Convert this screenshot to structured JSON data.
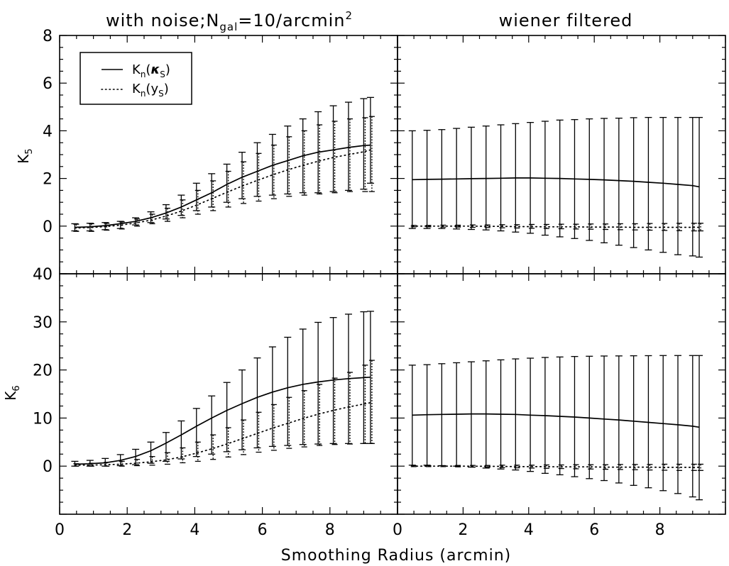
{
  "figure": {
    "left_title": "with noise;N",
    "left_title_sub": "gal",
    "left_title_mid": "=10/arcmin",
    "left_title_sup": "2",
    "right_title": "wiener filtered",
    "xlabel": "Smoothing Radius (arcmin)"
  },
  "legend": {
    "location": "top-left of upper-left panel",
    "entries": [
      {
        "main": "K",
        "sub1": "n",
        "open": "(",
        "sym": "κ",
        "sub2": "S",
        "close": ")",
        "style": "solid"
      },
      {
        "main": "K",
        "sub1": "n",
        "open": "(",
        "sym": "y",
        "sub2": "S",
        "close": ")",
        "style": "dotted"
      }
    ]
  },
  "chart_data": [
    {
      "type": "line",
      "panel": "top-left",
      "ylabel_main": "K",
      "ylabel_sub": "5",
      "xlim": [
        0,
        10
      ],
      "ylim": [
        -2,
        8
      ],
      "xticks": [
        "0",
        "2",
        "4",
        "6",
        "8"
      ],
      "yticks": [
        "0",
        "2",
        "4",
        "6",
        "8"
      ],
      "x": [
        0.45,
        0.9,
        1.35,
        1.8,
        2.25,
        2.7,
        3.15,
        3.6,
        4.05,
        4.5,
        4.95,
        5.4,
        5.85,
        6.3,
        6.75,
        7.2,
        7.65,
        8.1,
        8.55,
        9.0,
        9.2
      ],
      "series": [
        {
          "style": "solid",
          "values": [
            -0.05,
            -0.03,
            0.02,
            0.1,
            0.2,
            0.35,
            0.55,
            0.8,
            1.1,
            1.4,
            1.75,
            2.05,
            2.3,
            2.55,
            2.75,
            2.95,
            3.1,
            3.2,
            3.3,
            3.38,
            3.4
          ],
          "err_hi": [
            0.1,
            0.12,
            0.15,
            0.2,
            0.35,
            0.6,
            0.9,
            1.3,
            1.8,
            2.2,
            2.6,
            3.1,
            3.5,
            3.85,
            4.2,
            4.5,
            4.8,
            5.05,
            5.2,
            5.35,
            5.4
          ],
          "err_lo": [
            -0.2,
            -0.2,
            -0.15,
            -0.1,
            0.05,
            0.15,
            0.3,
            0.45,
            0.65,
            0.8,
            1.0,
            1.15,
            1.25,
            1.3,
            1.35,
            1.4,
            1.4,
            1.45,
            1.5,
            1.55,
            1.8
          ]
        },
        {
          "style": "dotted",
          "values": [
            -0.08,
            -0.06,
            -0.02,
            0.04,
            0.13,
            0.25,
            0.42,
            0.63,
            0.88,
            1.15,
            1.42,
            1.68,
            1.92,
            2.15,
            2.36,
            2.55,
            2.72,
            2.88,
            3.0,
            3.12,
            3.2
          ],
          "err_hi": [
            0.08,
            0.1,
            0.12,
            0.18,
            0.3,
            0.5,
            0.75,
            1.1,
            1.5,
            1.9,
            2.3,
            2.7,
            3.05,
            3.4,
            3.75,
            4.0,
            4.25,
            4.4,
            4.5,
            4.55,
            4.6
          ],
          "err_lo": [
            -0.22,
            -0.22,
            -0.17,
            -0.12,
            0.0,
            0.1,
            0.2,
            0.35,
            0.5,
            0.65,
            0.8,
            0.95,
            1.05,
            1.15,
            1.25,
            1.3,
            1.35,
            1.4,
            1.45,
            1.45,
            1.45
          ]
        }
      ]
    },
    {
      "type": "line",
      "panel": "top-right",
      "xlim": [
        0,
        10
      ],
      "ylim": [
        -2,
        8
      ],
      "xticks": [
        "0",
        "2",
        "4",
        "6",
        "8"
      ],
      "x": [
        0.45,
        0.9,
        1.35,
        1.8,
        2.25,
        2.7,
        3.15,
        3.6,
        4.05,
        4.5,
        4.95,
        5.4,
        5.85,
        6.3,
        6.75,
        7.2,
        7.65,
        8.1,
        8.55,
        9.0,
        9.2
      ],
      "series": [
        {
          "style": "solid",
          "values": [
            1.95,
            1.96,
            1.97,
            1.98,
            1.99,
            2.0,
            2.01,
            2.02,
            2.02,
            2.01,
            2.0,
            1.98,
            1.96,
            1.94,
            1.91,
            1.88,
            1.84,
            1.8,
            1.75,
            1.7,
            1.65
          ],
          "err_hi": [
            4.0,
            4.02,
            4.05,
            4.1,
            4.15,
            4.2,
            4.25,
            4.3,
            4.35,
            4.4,
            4.45,
            4.47,
            4.5,
            4.52,
            4.53,
            4.55,
            4.56,
            4.56,
            4.56,
            4.56,
            4.56
          ],
          "err_lo": [
            -0.1,
            -0.1,
            -0.1,
            -0.12,
            -0.14,
            -0.16,
            -0.2,
            -0.25,
            -0.3,
            -0.38,
            -0.45,
            -0.52,
            -0.6,
            -0.7,
            -0.8,
            -0.9,
            -1.0,
            -1.1,
            -1.2,
            -1.25,
            -1.3
          ]
        },
        {
          "style": "dotted",
          "values": [
            0.0,
            0.0,
            0.0,
            0.0,
            0.0,
            -0.01,
            -0.01,
            -0.02,
            -0.02,
            -0.03,
            -0.03,
            -0.03,
            -0.04,
            -0.04,
            -0.04,
            -0.05,
            -0.05,
            -0.05,
            -0.05,
            -0.05,
            -0.05
          ],
          "err_hi": [
            0.03,
            0.03,
            0.04,
            0.04,
            0.05,
            0.05,
            0.06,
            0.06,
            0.07,
            0.07,
            0.08,
            0.08,
            0.09,
            0.09,
            0.1,
            0.1,
            0.11,
            0.11,
            0.12,
            0.12,
            0.12
          ],
          "err_lo": [
            -0.03,
            -0.03,
            -0.04,
            -0.04,
            -0.05,
            -0.06,
            -0.07,
            -0.08,
            -0.09,
            -0.1,
            -0.11,
            -0.12,
            -0.13,
            -0.14,
            -0.15,
            -0.16,
            -0.17,
            -0.18,
            -0.19,
            -0.2,
            -0.2
          ]
        }
      ]
    },
    {
      "type": "line",
      "panel": "bottom-left",
      "ylabel_main": "K",
      "ylabel_sub": "6",
      "xlim": [
        0,
        10
      ],
      "ylim": [
        -10,
        40
      ],
      "xticks": [
        "0",
        "2",
        "4",
        "6",
        "8"
      ],
      "yticks": [
        "0",
        "10",
        "20",
        "30",
        "40"
      ],
      "x": [
        0.45,
        0.9,
        1.35,
        1.8,
        2.25,
        2.7,
        3.15,
        3.6,
        4.05,
        4.5,
        4.95,
        5.4,
        5.85,
        6.3,
        6.75,
        7.2,
        7.65,
        8.1,
        8.55,
        9.0,
        9.2
      ],
      "series": [
        {
          "style": "solid",
          "values": [
            0.4,
            0.5,
            0.7,
            1.2,
            2.0,
            3.2,
            4.8,
            6.5,
            8.3,
            10.0,
            11.6,
            13.0,
            14.3,
            15.4,
            16.3,
            17.0,
            17.5,
            17.9,
            18.2,
            18.4,
            18.5
          ],
          "err_hi": [
            1.0,
            1.2,
            1.6,
            2.4,
            3.5,
            5.0,
            7.0,
            9.4,
            12.0,
            14.6,
            17.4,
            20.0,
            22.5,
            24.8,
            26.8,
            28.5,
            29.9,
            30.9,
            31.6,
            32.1,
            32.2
          ],
          "err_lo": [
            0.0,
            0.0,
            0.0,
            0.1,
            0.3,
            0.6,
            1.0,
            1.5,
            2.0,
            2.5,
            3.0,
            3.4,
            3.8,
            4.1,
            4.3,
            4.5,
            4.6,
            4.7,
            4.7,
            4.7,
            4.7
          ]
        },
        {
          "style": "dotted",
          "values": [
            0.2,
            0.2,
            0.3,
            0.4,
            0.6,
            0.9,
            1.3,
            1.9,
            2.7,
            3.6,
            4.6,
            5.7,
            6.8,
            7.9,
            8.9,
            9.9,
            10.8,
            11.6,
            12.3,
            12.9,
            13.2
          ],
          "err_hi": [
            0.5,
            0.6,
            0.8,
            1.0,
            1.4,
            2.0,
            2.8,
            3.8,
            5.0,
            6.5,
            8.0,
            9.6,
            11.2,
            12.8,
            14.3,
            15.7,
            17.0,
            18.3,
            19.5,
            21.0,
            22.0
          ],
          "err_lo": [
            0.0,
            0.0,
            0.0,
            0.0,
            0.1,
            0.2,
            0.4,
            0.7,
            1.0,
            1.4,
            1.9,
            2.4,
            2.9,
            3.3,
            3.7,
            4.0,
            4.3,
            4.5,
            4.6,
            4.7,
            4.7
          ]
        }
      ]
    },
    {
      "type": "line",
      "panel": "bottom-right",
      "xlim": [
        0,
        10
      ],
      "ylim": [
        -10,
        40
      ],
      "xticks": [
        "0",
        "2",
        "4",
        "6",
        "8"
      ],
      "x": [
        0.45,
        0.9,
        1.35,
        1.8,
        2.25,
        2.7,
        3.15,
        3.6,
        4.05,
        4.5,
        4.95,
        5.4,
        5.85,
        6.3,
        6.75,
        7.2,
        7.65,
        8.1,
        8.55,
        9.0,
        9.2
      ],
      "series": [
        {
          "style": "solid",
          "values": [
            10.6,
            10.7,
            10.75,
            10.8,
            10.85,
            10.85,
            10.8,
            10.75,
            10.6,
            10.5,
            10.35,
            10.2,
            10.0,
            9.8,
            9.6,
            9.35,
            9.1,
            8.85,
            8.6,
            8.3,
            8.1
          ],
          "err_hi": [
            21.0,
            21.1,
            21.3,
            21.5,
            21.7,
            21.9,
            22.1,
            22.3,
            22.45,
            22.6,
            22.7,
            22.8,
            22.85,
            22.9,
            22.92,
            22.95,
            22.97,
            23.0,
            23.0,
            23.0,
            23.0
          ],
          "err_lo": [
            0.2,
            0.2,
            0.1,
            0.0,
            -0.2,
            -0.4,
            -0.6,
            -0.8,
            -1.1,
            -1.5,
            -1.8,
            -2.2,
            -2.6,
            -3.0,
            -3.5,
            -4.0,
            -4.5,
            -5.1,
            -5.7,
            -6.4,
            -7.0
          ]
        },
        {
          "style": "dotted",
          "values": [
            0.0,
            0.0,
            0.0,
            0.0,
            0.0,
            -0.05,
            -0.05,
            -0.1,
            -0.1,
            -0.1,
            -0.15,
            -0.15,
            -0.15,
            -0.2,
            -0.2,
            -0.2,
            -0.2,
            -0.25,
            -0.25,
            -0.25,
            -0.25
          ],
          "err_hi": [
            0.1,
            0.1,
            0.1,
            0.15,
            0.15,
            0.15,
            0.2,
            0.2,
            0.2,
            0.25,
            0.25,
            0.3,
            0.3,
            0.3,
            0.35,
            0.35,
            0.35,
            0.4,
            0.4,
            0.4,
            0.4
          ],
          "err_lo": [
            -0.1,
            -0.1,
            -0.1,
            -0.15,
            -0.2,
            -0.25,
            -0.3,
            -0.35,
            -0.4,
            -0.45,
            -0.5,
            -0.55,
            -0.6,
            -0.65,
            -0.7,
            -0.75,
            -0.8,
            -0.85,
            -0.9,
            -0.9,
            -0.9
          ]
        }
      ]
    }
  ]
}
